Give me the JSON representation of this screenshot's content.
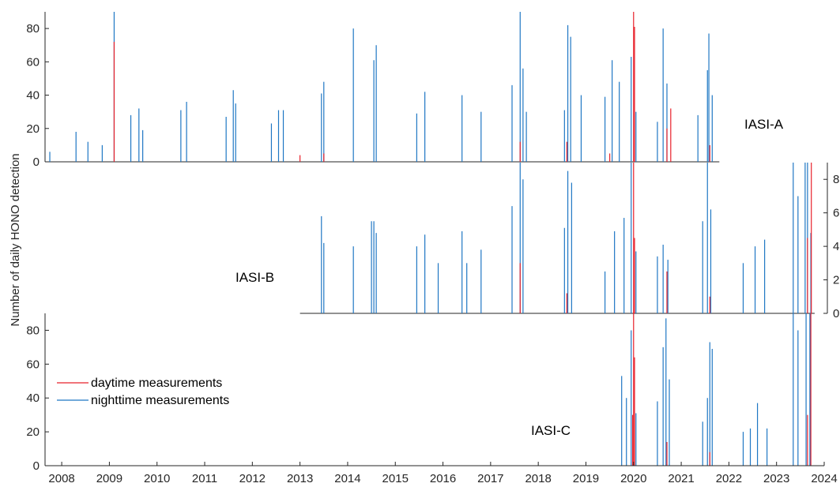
{
  "chart_data": {
    "type": "bar",
    "ylabel": "Number of daily HONO detection",
    "x_range": [
      2007.65,
      2024.0
    ],
    "x_ticks": [
      "2008",
      "2009",
      "2010",
      "2011",
      "2012",
      "2013",
      "2014",
      "2015",
      "2016",
      "2017",
      "2018",
      "2019",
      "2020",
      "2021",
      "2022",
      "2023",
      "2024"
    ],
    "legend": {
      "entries": [
        {
          "label": "daytime measurements",
          "color": "#e8202a"
        },
        {
          "label": "nighttime measurements",
          "color": "#1f77c4"
        }
      ],
      "placement": "left, bottom panel"
    },
    "panels": [
      {
        "name": "IASI-A",
        "ylim": [
          0,
          90
        ],
        "yticks": [
          "0",
          "20",
          "40",
          "60",
          "80"
        ],
        "yaxis_side": "left",
        "x_extent": [
          2007.65,
          2021.8
        ],
        "series": [
          {
            "name": "nighttime measurements",
            "color": "#1f77c4",
            "x": [
              2007.75,
              2008.3,
              2008.55,
              2008.85,
              2009.1,
              2009.45,
              2009.62,
              2009.7,
              2010.5,
              2010.62,
              2011.45,
              2011.6,
              2011.65,
              2012.4,
              2012.55,
              2012.65,
              2013.45,
              2013.5,
              2014.12,
              2014.55,
              2014.6,
              2015.45,
              2015.62,
              2016.4,
              2016.8,
              2017.45,
              2017.62,
              2017.68,
              2017.75,
              2018.55,
              2018.62,
              2018.68,
              2018.9,
              2019.4,
              2019.55,
              2019.7,
              2019.95,
              2020.05,
              2020.5,
              2020.62,
              2020.7,
              2021.35,
              2021.55,
              2021.58,
              2021.65
            ],
            "y": [
              6,
              18,
              12,
              10,
              90,
              28,
              32,
              19,
              31,
              36,
              27,
              43,
              35,
              23,
              31,
              31,
              41,
              48,
              80,
              61,
              70,
              29,
              42,
              40,
              30,
              46,
              90,
              56,
              30,
              31,
              82,
              75,
              40,
              39,
              61,
              48,
              63,
              30,
              24,
              80,
              47,
              28,
              55,
              77,
              40
            ]
          },
          {
            "name": "daytime measurements",
            "color": "#e8202a",
            "x": [
              2009.1,
              2013.0,
              2013.5,
              2017.62,
              2018.6,
              2019.5,
              2020.0,
              2020.02,
              2020.7,
              2020.78,
              2021.6
            ],
            "y": [
              72,
              4,
              5,
              12,
              12,
              5,
              90,
              81,
              20,
              32,
              10
            ]
          }
        ]
      },
      {
        "name": "IASI-B",
        "ylim": [
          0,
          90
        ],
        "yticks": [
          "0",
          "2",
          "4",
          "6",
          "8"
        ],
        "yaxis_side": "right",
        "x_extent": [
          2013.0,
          2023.8
        ],
        "series": [
          {
            "name": "nighttime measurements",
            "color": "#1f77c4",
            "x": [
              2013.45,
              2013.5,
              2014.12,
              2014.5,
              2014.55,
              2014.6,
              2015.45,
              2015.62,
              2015.9,
              2016.4,
              2016.5,
              2016.8,
              2017.45,
              2017.62,
              2017.68,
              2018.55,
              2018.62,
              2018.7,
              2019.4,
              2019.6,
              2019.8,
              2019.95,
              2020.05,
              2020.5,
              2020.62,
              2020.72,
              2021.45,
              2021.55,
              2021.62,
              2022.3,
              2022.55,
              2022.75,
              2023.35,
              2023.45,
              2023.6,
              2023.65,
              2023.72
            ],
            "y": [
              58,
              42,
              40,
              55,
              55,
              48,
              40,
              47,
              30,
              49,
              30,
              38,
              64,
              90,
              80,
              51,
              85,
              78,
              25,
              49,
              57,
              90,
              37,
              34,
              41,
              32,
              55,
              90,
              62,
              30,
              40,
              44,
              90,
              70,
              90,
              90,
              48
            ]
          },
          {
            "name": "daytime measurements",
            "color": "#e8202a",
            "x": [
              2017.62,
              2018.6,
              2020.0,
              2020.02,
              2020.7,
              2021.6,
              2023.65,
              2023.73
            ],
            "y": [
              30,
              12,
              90,
              45,
              25,
              10,
              45,
              90
            ]
          }
        ]
      },
      {
        "name": "IASI-C",
        "ylim": [
          0,
          90
        ],
        "yticks": [
          "0",
          "20",
          "40",
          "60",
          "80"
        ],
        "yaxis_side": "left",
        "x_extent": [
          2019.7,
          2023.8
        ],
        "series": [
          {
            "name": "nighttime measurements",
            "color": "#1f77c4",
            "x": [
              2019.75,
              2019.85,
              2019.95,
              2020.05,
              2020.5,
              2020.62,
              2020.68,
              2020.75,
              2021.45,
              2021.55,
              2021.6,
              2021.65,
              2022.3,
              2022.45,
              2022.6,
              2022.8,
              2023.35,
              2023.45,
              2023.62,
              2023.7
            ],
            "y": [
              53,
              40,
              80,
              31,
              38,
              70,
              87,
              51,
              26,
              40,
              73,
              69,
              20,
              22,
              37,
              22,
              90,
              80,
              90,
              90
            ]
          },
          {
            "name": "daytime measurements",
            "color": "#e8202a",
            "x": [
              2019.98,
              2020.0,
              2020.02,
              2020.7,
              2021.6,
              2023.65,
              2023.72
            ],
            "y": [
              30,
              90,
              64,
              14,
              8,
              30,
              90
            ]
          }
        ]
      }
    ]
  }
}
